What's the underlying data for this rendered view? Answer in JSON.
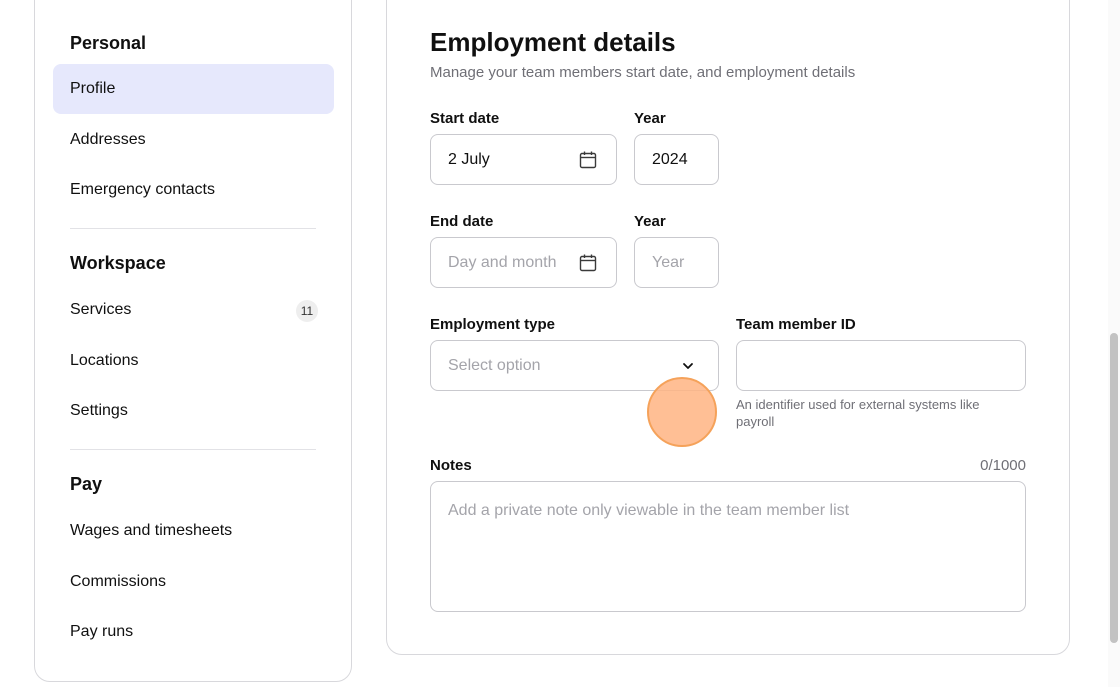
{
  "sidebar": {
    "sections": [
      {
        "heading": "Personal",
        "items": [
          {
            "label": "Profile",
            "active": true
          },
          {
            "label": "Addresses"
          },
          {
            "label": "Emergency contacts"
          }
        ]
      },
      {
        "heading": "Workspace",
        "items": [
          {
            "label": "Services",
            "badge": "11"
          },
          {
            "label": "Locations"
          },
          {
            "label": "Settings"
          }
        ]
      },
      {
        "heading": "Pay",
        "items": [
          {
            "label": "Wages and timesheets"
          },
          {
            "label": "Commissions"
          },
          {
            "label": "Pay runs"
          }
        ]
      }
    ]
  },
  "form": {
    "title": "Employment details",
    "subtitle": "Manage your team members start date, and employment details",
    "start_date": {
      "label": "Start date",
      "value": "2 July",
      "icon": "calendar-icon"
    },
    "start_year": {
      "label": "Year",
      "value": "2024"
    },
    "end_date": {
      "label": "End date",
      "placeholder": "Day and month",
      "icon": "calendar-icon"
    },
    "end_year": {
      "label": "Year",
      "placeholder": "Year"
    },
    "employment_type": {
      "label": "Employment type",
      "placeholder": "Select option",
      "icon": "chevron-down-icon"
    },
    "team_member_id": {
      "label": "Team member ID",
      "value": "",
      "hint": "An identifier used for external systems like payroll"
    },
    "notes": {
      "label": "Notes",
      "counter": "0/1000",
      "placeholder": "Add a private note only viewable in the team member list"
    }
  },
  "colors": {
    "accent_active": "#e6e8fc",
    "cursor": "#ffb482"
  }
}
